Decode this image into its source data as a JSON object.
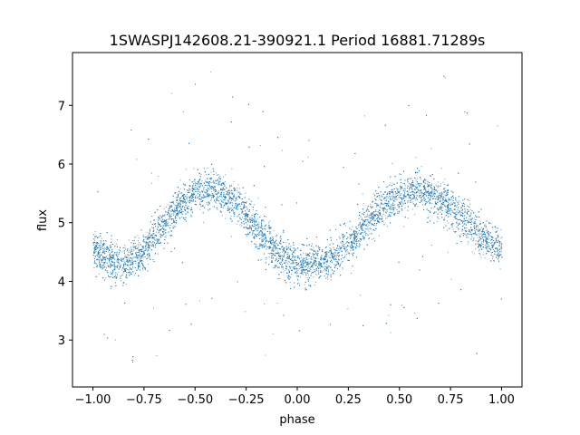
{
  "chart_data": {
    "type": "scatter",
    "title": "1SWASPJ142608.21-390921.1 Period 16881.71289s",
    "xlabel": "phase",
    "ylabel": "flux",
    "xlim": [
      -1.1,
      1.1
    ],
    "ylim": [
      2.2,
      7.9
    ],
    "x_ticks": [
      -1.0,
      -0.75,
      -0.5,
      -0.25,
      0.0,
      0.25,
      0.5,
      0.75,
      1.0
    ],
    "x_tick_labels": [
      "−1.00",
      "−0.75",
      "−0.50",
      "−0.25",
      "0.00",
      "0.25",
      "0.50",
      "0.75",
      "1.00"
    ],
    "y_ticks": [
      3,
      4,
      5,
      6,
      7
    ],
    "y_tick_labels": [
      "3",
      "4",
      "5",
      "6",
      "7"
    ],
    "grid": false,
    "marker_color": "#1f77b4",
    "series": [
      {
        "x": [
          -1.0,
          -0.95,
          -0.9,
          -0.85,
          -0.8,
          -0.75,
          -0.7,
          -0.65,
          -0.6,
          -0.55,
          -0.5,
          -0.45,
          -0.4,
          -0.35,
          -0.3,
          -0.25,
          -0.2,
          -0.15,
          -0.1,
          -0.05,
          0.0,
          0.05,
          0.1,
          0.15,
          0.2,
          0.25,
          0.3,
          0.35,
          0.4,
          0.45,
          0.5,
          0.55,
          0.6,
          0.65,
          0.7,
          0.75,
          0.8,
          0.85,
          0.9,
          0.95,
          1.0
        ],
        "y": [
          4.55,
          4.42,
          4.32,
          4.28,
          4.38,
          4.55,
          4.78,
          5.02,
          5.22,
          5.38,
          5.5,
          5.56,
          5.55,
          5.47,
          5.32,
          5.12,
          4.9,
          4.68,
          4.5,
          4.36,
          4.3,
          4.28,
          4.3,
          4.36,
          4.48,
          4.65,
          4.85,
          5.05,
          5.22,
          5.36,
          5.47,
          5.54,
          5.55,
          5.5,
          5.4,
          5.26,
          5.1,
          4.94,
          4.78,
          4.64,
          4.55
        ],
        "scatter_width": 0.3
      }
    ]
  }
}
